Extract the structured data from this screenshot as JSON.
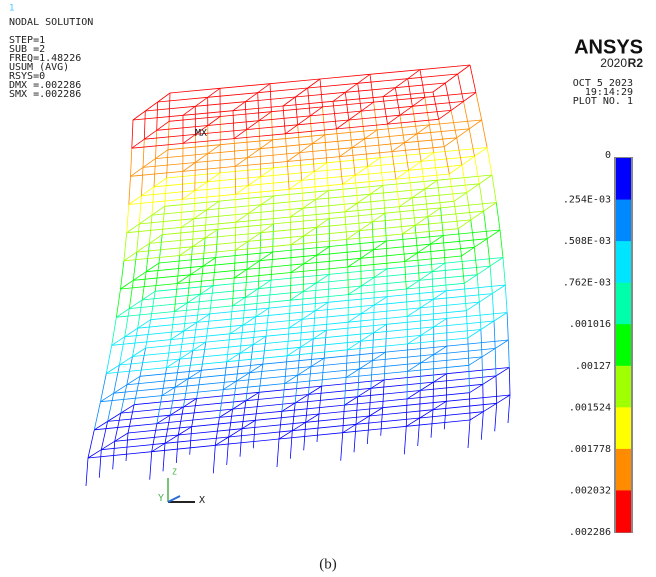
{
  "window_number": "1",
  "header": {
    "title": "NODAL SOLUTION",
    "lines": [
      "STEP=1",
      "SUB =2",
      "FREQ=1.48226",
      "USUM      (AVG)",
      "RSYS=0",
      "DMX =.002286",
      "SMX =.002286"
    ]
  },
  "brand": {
    "logo": "ANSYS",
    "version": "2020",
    "release": "R2",
    "date": "OCT  5 2023",
    "time": "19:14:29",
    "plot": "PLOT NO.   1"
  },
  "annotation": "MX",
  "axes": {
    "x": "X",
    "y": "Y",
    "z": "Z"
  },
  "legend": {
    "labels": [
      "0",
      ".254E-03",
      ".508E-03",
      ".762E-03",
      ".001016",
      ".00127",
      ".001524",
      ".001778",
      ".002032",
      ".002286"
    ],
    "colors": [
      "#0000ff",
      "#0088ff",
      "#00e5ff",
      "#00ffaa",
      "#00ff00",
      "#a0ff00",
      "#ffff00",
      "#ff8c00",
      "#ff0000"
    ]
  },
  "caption": "(b)"
}
